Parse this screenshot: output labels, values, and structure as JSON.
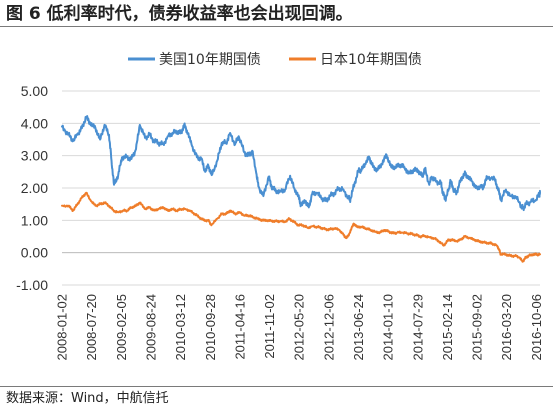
{
  "title": "图 6 低利率时代，债券收益率也会出现回调。",
  "source": "数据来源：Wind，中航信托",
  "colors": {
    "us": "#4a8fd1",
    "jp": "#ef7d2a",
    "grid": "#d9d9d9",
    "axis": "#bfbfbf"
  },
  "chart_data": {
    "type": "line",
    "ylim": [
      -1.0,
      5.0
    ],
    "ytick_step": 1.0,
    "y_tick_labels": [
      "5.00",
      "4.00",
      "3.00",
      "2.00",
      "1.00",
      "0.00",
      "-1.00"
    ],
    "x_tick_labels": [
      "2008-01-02",
      "2008-07-20",
      "2009-02-05",
      "2009-08-24",
      "2010-03-12",
      "2010-09-28",
      "2011-04-16",
      "2011-11-02",
      "2012-05-20",
      "2012-12-06",
      "2013-06-24",
      "2014-01-10",
      "2014-07-29",
      "2015-02-14",
      "2015-09-02",
      "2016-03-20",
      "2016-10-06"
    ],
    "x_start": "2008-01-02",
    "x_end": "2016-10-31",
    "grid": "horizontal",
    "legend_position": "top",
    "series": [
      {
        "name": "美国10年期国债",
        "points": [
          [
            "2008-01-02",
            3.9
          ],
          [
            "2008-02-15",
            3.65
          ],
          [
            "2008-03-17",
            3.45
          ],
          [
            "2008-04-15",
            3.65
          ],
          [
            "2008-05-15",
            3.85
          ],
          [
            "2008-06-13",
            4.2
          ],
          [
            "2008-07-10",
            4.0
          ],
          [
            "2008-08-15",
            3.85
          ],
          [
            "2008-09-15",
            3.5
          ],
          [
            "2008-10-15",
            3.95
          ],
          [
            "2008-11-14",
            3.65
          ],
          [
            "2008-12-01",
            2.85
          ],
          [
            "2008-12-18",
            2.1
          ],
          [
            "2009-01-15",
            2.4
          ],
          [
            "2009-02-10",
            2.95
          ],
          [
            "2009-03-16",
            2.95
          ],
          [
            "2009-04-15",
            2.9
          ],
          [
            "2009-05-15",
            3.2
          ],
          [
            "2009-06-10",
            3.95
          ],
          [
            "2009-07-15",
            3.55
          ],
          [
            "2009-08-14",
            3.65
          ],
          [
            "2009-09-15",
            3.45
          ],
          [
            "2009-10-15",
            3.4
          ],
          [
            "2009-11-16",
            3.35
          ],
          [
            "2009-12-15",
            3.6
          ],
          [
            "2010-01-15",
            3.7
          ],
          [
            "2010-02-16",
            3.75
          ],
          [
            "2010-03-15",
            3.7
          ],
          [
            "2010-04-05",
            3.95
          ],
          [
            "2010-04-30",
            3.7
          ],
          [
            "2010-05-28",
            3.3
          ],
          [
            "2010-06-30",
            2.95
          ],
          [
            "2010-07-30",
            2.9
          ],
          [
            "2010-08-25",
            2.5
          ],
          [
            "2010-09-15",
            2.7
          ],
          [
            "2010-10-08",
            2.4
          ],
          [
            "2010-11-15",
            2.85
          ],
          [
            "2010-12-15",
            3.4
          ],
          [
            "2011-01-14",
            3.4
          ],
          [
            "2011-02-09",
            3.7
          ],
          [
            "2011-03-15",
            3.35
          ],
          [
            "2011-04-08",
            3.6
          ],
          [
            "2011-05-16",
            3.1
          ],
          [
            "2011-06-15",
            3.0
          ],
          [
            "2011-07-08",
            3.15
          ],
          [
            "2011-08-05",
            2.45
          ],
          [
            "2011-08-19",
            2.05
          ],
          [
            "2011-09-22",
            1.75
          ],
          [
            "2011-10-27",
            2.35
          ],
          [
            "2011-11-15",
            2.05
          ],
          [
            "2011-12-15",
            1.9
          ],
          [
            "2012-01-16",
            1.9
          ],
          [
            "2012-02-15",
            1.95
          ],
          [
            "2012-03-20",
            2.38
          ],
          [
            "2012-04-16",
            2.0
          ],
          [
            "2012-05-15",
            1.75
          ],
          [
            "2012-06-01",
            1.47
          ],
          [
            "2012-07-02",
            1.6
          ],
          [
            "2012-07-24",
            1.4
          ],
          [
            "2012-08-15",
            1.8
          ],
          [
            "2012-09-17",
            1.85
          ],
          [
            "2012-10-15",
            1.7
          ],
          [
            "2012-11-15",
            1.6
          ],
          [
            "2012-12-14",
            1.75
          ],
          [
            "2013-01-15",
            1.85
          ],
          [
            "2013-02-15",
            2.0
          ],
          [
            "2013-03-15",
            1.95
          ],
          [
            "2013-04-16",
            1.7
          ],
          [
            "2013-05-01",
            1.65
          ],
          [
            "2013-05-29",
            2.15
          ],
          [
            "2013-06-25",
            2.55
          ],
          [
            "2013-07-15",
            2.55
          ],
          [
            "2013-08-15",
            2.8
          ],
          [
            "2013-09-05",
            2.95
          ],
          [
            "2013-09-30",
            2.65
          ],
          [
            "2013-10-31",
            2.55
          ],
          [
            "2013-11-29",
            2.75
          ],
          [
            "2013-12-31",
            3.02
          ],
          [
            "2014-01-31",
            2.65
          ],
          [
            "2014-02-28",
            2.65
          ],
          [
            "2014-03-31",
            2.72
          ],
          [
            "2014-04-30",
            2.65
          ],
          [
            "2014-05-29",
            2.45
          ],
          [
            "2014-06-30",
            2.55
          ],
          [
            "2014-07-31",
            2.55
          ],
          [
            "2014-08-29",
            2.35
          ],
          [
            "2014-09-15",
            2.6
          ],
          [
            "2014-10-15",
            2.1
          ],
          [
            "2014-10-31",
            2.35
          ],
          [
            "2014-11-28",
            2.2
          ],
          [
            "2014-12-31",
            2.17
          ],
          [
            "2015-01-15",
            1.85
          ],
          [
            "2015-01-30",
            1.65
          ],
          [
            "2015-02-27",
            2.0
          ],
          [
            "2015-03-06",
            2.25
          ],
          [
            "2015-03-31",
            1.92
          ],
          [
            "2015-04-17",
            1.85
          ],
          [
            "2015-05-15",
            2.25
          ],
          [
            "2015-06-10",
            2.45
          ],
          [
            "2015-06-30",
            2.35
          ],
          [
            "2015-07-31",
            2.2
          ],
          [
            "2015-08-24",
            2.0
          ],
          [
            "2015-09-30",
            2.05
          ],
          [
            "2015-10-15",
            2.0
          ],
          [
            "2015-11-09",
            2.35
          ],
          [
            "2015-12-31",
            2.27
          ],
          [
            "2016-01-20",
            2.0
          ],
          [
            "2016-02-11",
            1.63
          ],
          [
            "2016-03-15",
            1.95
          ],
          [
            "2016-04-15",
            1.75
          ],
          [
            "2016-05-16",
            1.75
          ],
          [
            "2016-06-27",
            1.45
          ],
          [
            "2016-07-08",
            1.37
          ],
          [
            "2016-07-29",
            1.5
          ],
          [
            "2016-08-31",
            1.58
          ],
          [
            "2016-09-30",
            1.6
          ],
          [
            "2016-10-26",
            1.8
          ],
          [
            "2016-10-31",
            1.84
          ]
        ]
      },
      {
        "name": "日本10年期国债",
        "points": [
          [
            "2008-01-02",
            1.45
          ],
          [
            "2008-02-15",
            1.45
          ],
          [
            "2008-03-17",
            1.3
          ],
          [
            "2008-04-15",
            1.5
          ],
          [
            "2008-05-15",
            1.7
          ],
          [
            "2008-06-13",
            1.85
          ],
          [
            "2008-07-15",
            1.6
          ],
          [
            "2008-08-15",
            1.45
          ],
          [
            "2008-09-15",
            1.5
          ],
          [
            "2008-10-15",
            1.55
          ],
          [
            "2008-11-14",
            1.45
          ],
          [
            "2008-12-15",
            1.3
          ],
          [
            "2009-01-15",
            1.25
          ],
          [
            "2009-02-15",
            1.3
          ],
          [
            "2009-03-16",
            1.3
          ],
          [
            "2009-04-15",
            1.4
          ],
          [
            "2009-05-15",
            1.45
          ],
          [
            "2009-06-10",
            1.55
          ],
          [
            "2009-07-15",
            1.35
          ],
          [
            "2009-08-14",
            1.4
          ],
          [
            "2009-09-15",
            1.3
          ],
          [
            "2009-10-15",
            1.35
          ],
          [
            "2009-11-16",
            1.4
          ],
          [
            "2009-12-15",
            1.3
          ],
          [
            "2010-01-15",
            1.35
          ],
          [
            "2010-02-16",
            1.3
          ],
          [
            "2010-03-15",
            1.35
          ],
          [
            "2010-04-15",
            1.35
          ],
          [
            "2010-05-14",
            1.3
          ],
          [
            "2010-06-15",
            1.2
          ],
          [
            "2010-07-15",
            1.1
          ],
          [
            "2010-08-16",
            1.0
          ],
          [
            "2010-09-15",
            1.0
          ],
          [
            "2010-10-06",
            0.85
          ],
          [
            "2010-11-15",
            1.05
          ],
          [
            "2010-12-15",
            1.2
          ],
          [
            "2011-01-14",
            1.2
          ],
          [
            "2011-02-09",
            1.3
          ],
          [
            "2011-03-15",
            1.2
          ],
          [
            "2011-04-15",
            1.25
          ],
          [
            "2011-05-16",
            1.15
          ],
          [
            "2011-06-15",
            1.15
          ],
          [
            "2011-07-15",
            1.1
          ],
          [
            "2011-08-15",
            1.05
          ],
          [
            "2011-09-15",
            1.0
          ],
          [
            "2011-10-14",
            1.0
          ],
          [
            "2011-11-15",
            0.98
          ],
          [
            "2011-12-15",
            0.97
          ],
          [
            "2012-01-16",
            0.97
          ],
          [
            "2012-02-15",
            0.95
          ],
          [
            "2012-03-15",
            1.05
          ],
          [
            "2012-04-16",
            0.95
          ],
          [
            "2012-05-15",
            0.85
          ],
          [
            "2012-06-15",
            0.85
          ],
          [
            "2012-07-16",
            0.77
          ],
          [
            "2012-08-15",
            0.82
          ],
          [
            "2012-09-17",
            0.8
          ],
          [
            "2012-10-15",
            0.77
          ],
          [
            "2012-11-15",
            0.72
          ],
          [
            "2012-12-14",
            0.72
          ],
          [
            "2013-01-15",
            0.75
          ],
          [
            "2013-02-15",
            0.7
          ],
          [
            "2013-03-15",
            0.55
          ],
          [
            "2013-04-05",
            0.45
          ],
          [
            "2013-04-25",
            0.6
          ],
          [
            "2013-05-23",
            0.9
          ],
          [
            "2013-06-14",
            0.8
          ],
          [
            "2013-07-15",
            0.8
          ],
          [
            "2013-08-15",
            0.75
          ],
          [
            "2013-09-16",
            0.7
          ],
          [
            "2013-10-15",
            0.65
          ],
          [
            "2013-11-15",
            0.62
          ],
          [
            "2013-12-16",
            0.7
          ],
          [
            "2014-01-15",
            0.65
          ],
          [
            "2014-02-14",
            0.6
          ],
          [
            "2014-03-14",
            0.62
          ],
          [
            "2014-04-15",
            0.62
          ],
          [
            "2014-05-15",
            0.6
          ],
          [
            "2014-06-16",
            0.58
          ],
          [
            "2014-07-15",
            0.55
          ],
          [
            "2014-08-15",
            0.5
          ],
          [
            "2014-09-15",
            0.52
          ],
          [
            "2014-10-15",
            0.48
          ],
          [
            "2014-11-14",
            0.45
          ],
          [
            "2014-12-15",
            0.37
          ],
          [
            "2015-01-20",
            0.22
          ],
          [
            "2015-02-16",
            0.38
          ],
          [
            "2015-03-16",
            0.4
          ],
          [
            "2015-04-15",
            0.35
          ],
          [
            "2015-05-15",
            0.4
          ],
          [
            "2015-06-10",
            0.5
          ],
          [
            "2015-07-15",
            0.45
          ],
          [
            "2015-08-14",
            0.4
          ],
          [
            "2015-09-15",
            0.35
          ],
          [
            "2015-10-15",
            0.32
          ],
          [
            "2015-11-16",
            0.3
          ],
          [
            "2015-12-15",
            0.28
          ],
          [
            "2016-01-15",
            0.22
          ],
          [
            "2016-01-29",
            0.1
          ],
          [
            "2016-02-09",
            -0.05
          ],
          [
            "2016-03-15",
            -0.05
          ],
          [
            "2016-04-15",
            -0.1
          ],
          [
            "2016-05-16",
            -0.1
          ],
          [
            "2016-06-15",
            -0.15
          ],
          [
            "2016-07-05",
            -0.28
          ],
          [
            "2016-07-27",
            -0.15
          ],
          [
            "2016-08-15",
            -0.1
          ],
          [
            "2016-09-15",
            -0.05
          ],
          [
            "2016-10-14",
            -0.06
          ],
          [
            "2016-10-31",
            -0.05
          ]
        ]
      }
    ]
  }
}
